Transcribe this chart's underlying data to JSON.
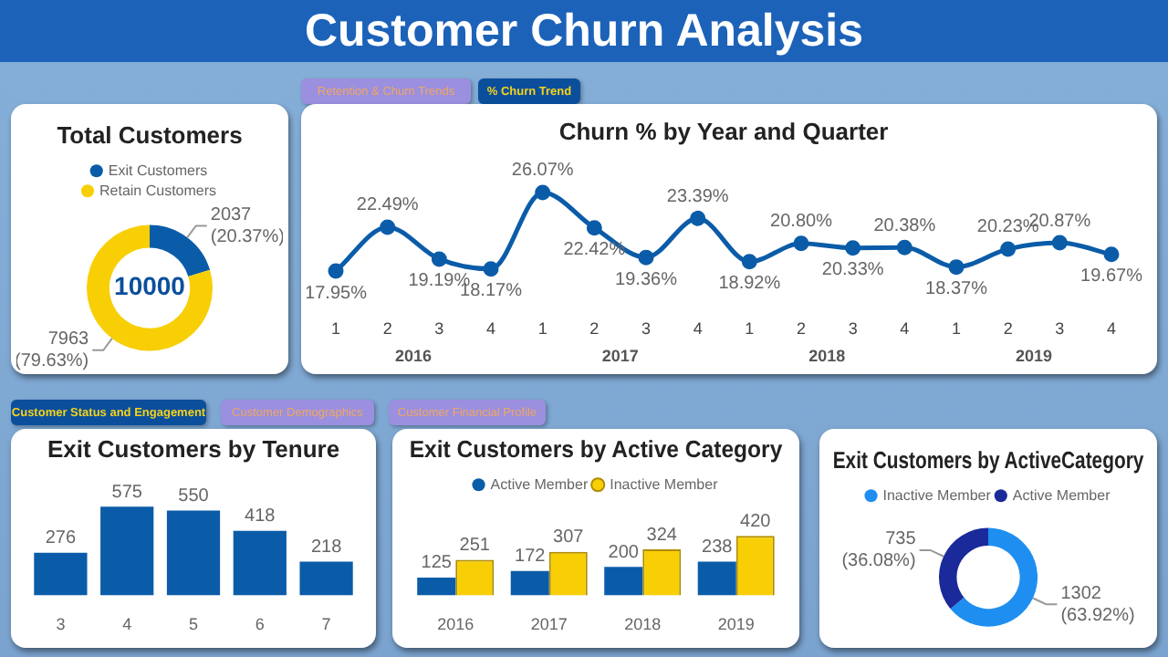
{
  "chart_data": [
    {
      "type": "other",
      "title": "Customer Churn Analysis",
      "annotations": [
        "Retention & Churn Trends",
        "% Churn Trend",
        "Customer Status and Engagement",
        "Customer Demographics",
        "Customer Financial Profile"
      ]
    },
    {
      "type": "donut",
      "title": "Total Customers",
      "categories": [
        "Exit Customers",
        "Retain Customers"
      ],
      "values": [
        2037,
        7963
      ],
      "colors": [
        "#0b5ca8",
        "#f8cf05"
      ],
      "value_labels": [
        "2037 (20.37%)",
        "7963 (79.63%)"
      ],
      "annotations": [
        "10000"
      ],
      "legend": "top"
    },
    {
      "type": "line",
      "title": "Churn % by Year and Quarter",
      "categories": [
        "1",
        "2",
        "3",
        "4",
        "1",
        "2",
        "3",
        "4",
        "1",
        "2",
        "3",
        "4",
        "1",
        "2",
        "3",
        "4"
      ],
      "annotations": [
        "2016",
        "2017",
        "2018",
        "2019"
      ],
      "marker": "circle",
      "series": [
        {
          "color": "#0b5ca8",
          "values": [
            17.95,
            22.49,
            19.19,
            18.17,
            26.07,
            22.42,
            19.36,
            23.39,
            18.92,
            20.8,
            20.33,
            20.38,
            18.37,
            20.23,
            20.87,
            19.67
          ],
          "value_labels": [
            "17.95%",
            "22.49%",
            "19.19%",
            "18.17%",
            "26.07%",
            "22.42%",
            "19.36%",
            "23.39%",
            "18.92%",
            "20.80%",
            "20.33%",
            "20.38%",
            "18.37%",
            "20.23%",
            "20.87%",
            "19.67%"
          ]
        }
      ]
    },
    {
      "type": "bar",
      "title": "Exit Customers by Tenure",
      "categories": [
        "3",
        "4",
        "5",
        "6",
        "7"
      ],
      "values": [
        276,
        575,
        550,
        418,
        218
      ],
      "color": "#0b5ca8",
      "data_labels": true
    },
    {
      "type": "bar",
      "title": "Exit Customers by Active Category",
      "categories": [
        "2016",
        "2017",
        "2018",
        "2019"
      ],
      "legend": "top",
      "data_labels": true,
      "series": [
        {
          "name": "Active Member",
          "color": "#0b5ca8",
          "values": [
            125,
            172,
            200,
            238
          ]
        },
        {
          "name": "Inactive Member",
          "color": "#f8cf05",
          "values": [
            251,
            307,
            324,
            420
          ]
        }
      ]
    },
    {
      "type": "donut",
      "title": "Exit Customers by ActiveCategory",
      "categories": [
        "Inactive Member",
        "Active Member"
      ],
      "values": [
        1302,
        735
      ],
      "colors": [
        "#1e8ff0",
        "#1a2a9a"
      ],
      "value_labels": [
        "1302 (63.92%)",
        "735 (36.08%)"
      ],
      "legend": "top"
    }
  ]
}
